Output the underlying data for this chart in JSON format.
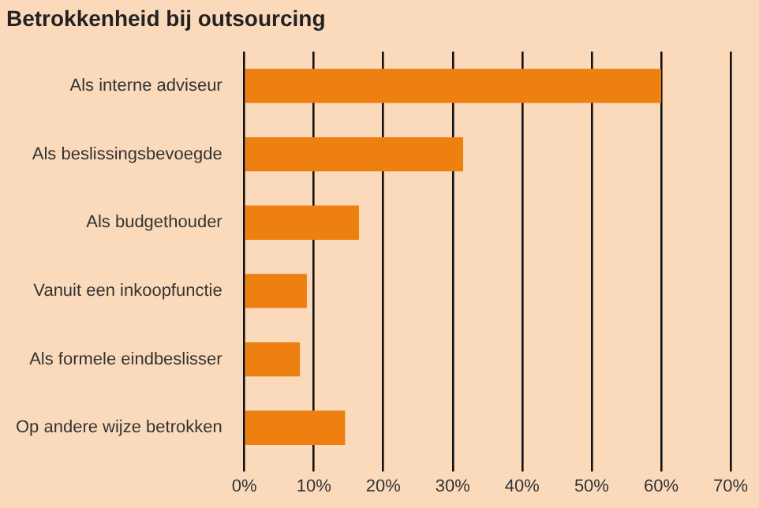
{
  "chart_data": {
    "type": "bar",
    "orientation": "horizontal",
    "title": "Betrokkenheid bij outsourcing",
    "categories": [
      "Als interne adviseur",
      "Als beslissingsbevoegde",
      "Als budgethouder",
      "Vanuit een inkoopfunctie",
      "Als formele eindbeslisser",
      "Op andere wijze betrokken"
    ],
    "values": [
      60,
      31.5,
      16.5,
      9,
      8,
      14.5
    ],
    "color": "#ee7f11",
    "xlim": [
      0,
      70
    ],
    "xticks": [
      {
        "value": 0,
        "label": "0%"
      },
      {
        "value": 10,
        "label": "10%"
      },
      {
        "value": 20,
        "label": "20%"
      },
      {
        "value": 30,
        "label": "30%"
      },
      {
        "value": 40,
        "label": "40%"
      },
      {
        "value": 50,
        "label": "50%"
      },
      {
        "value": 60,
        "label": "60%"
      },
      {
        "value": 70,
        "label": "70%"
      }
    ],
    "grid": "x",
    "legend": false
  }
}
